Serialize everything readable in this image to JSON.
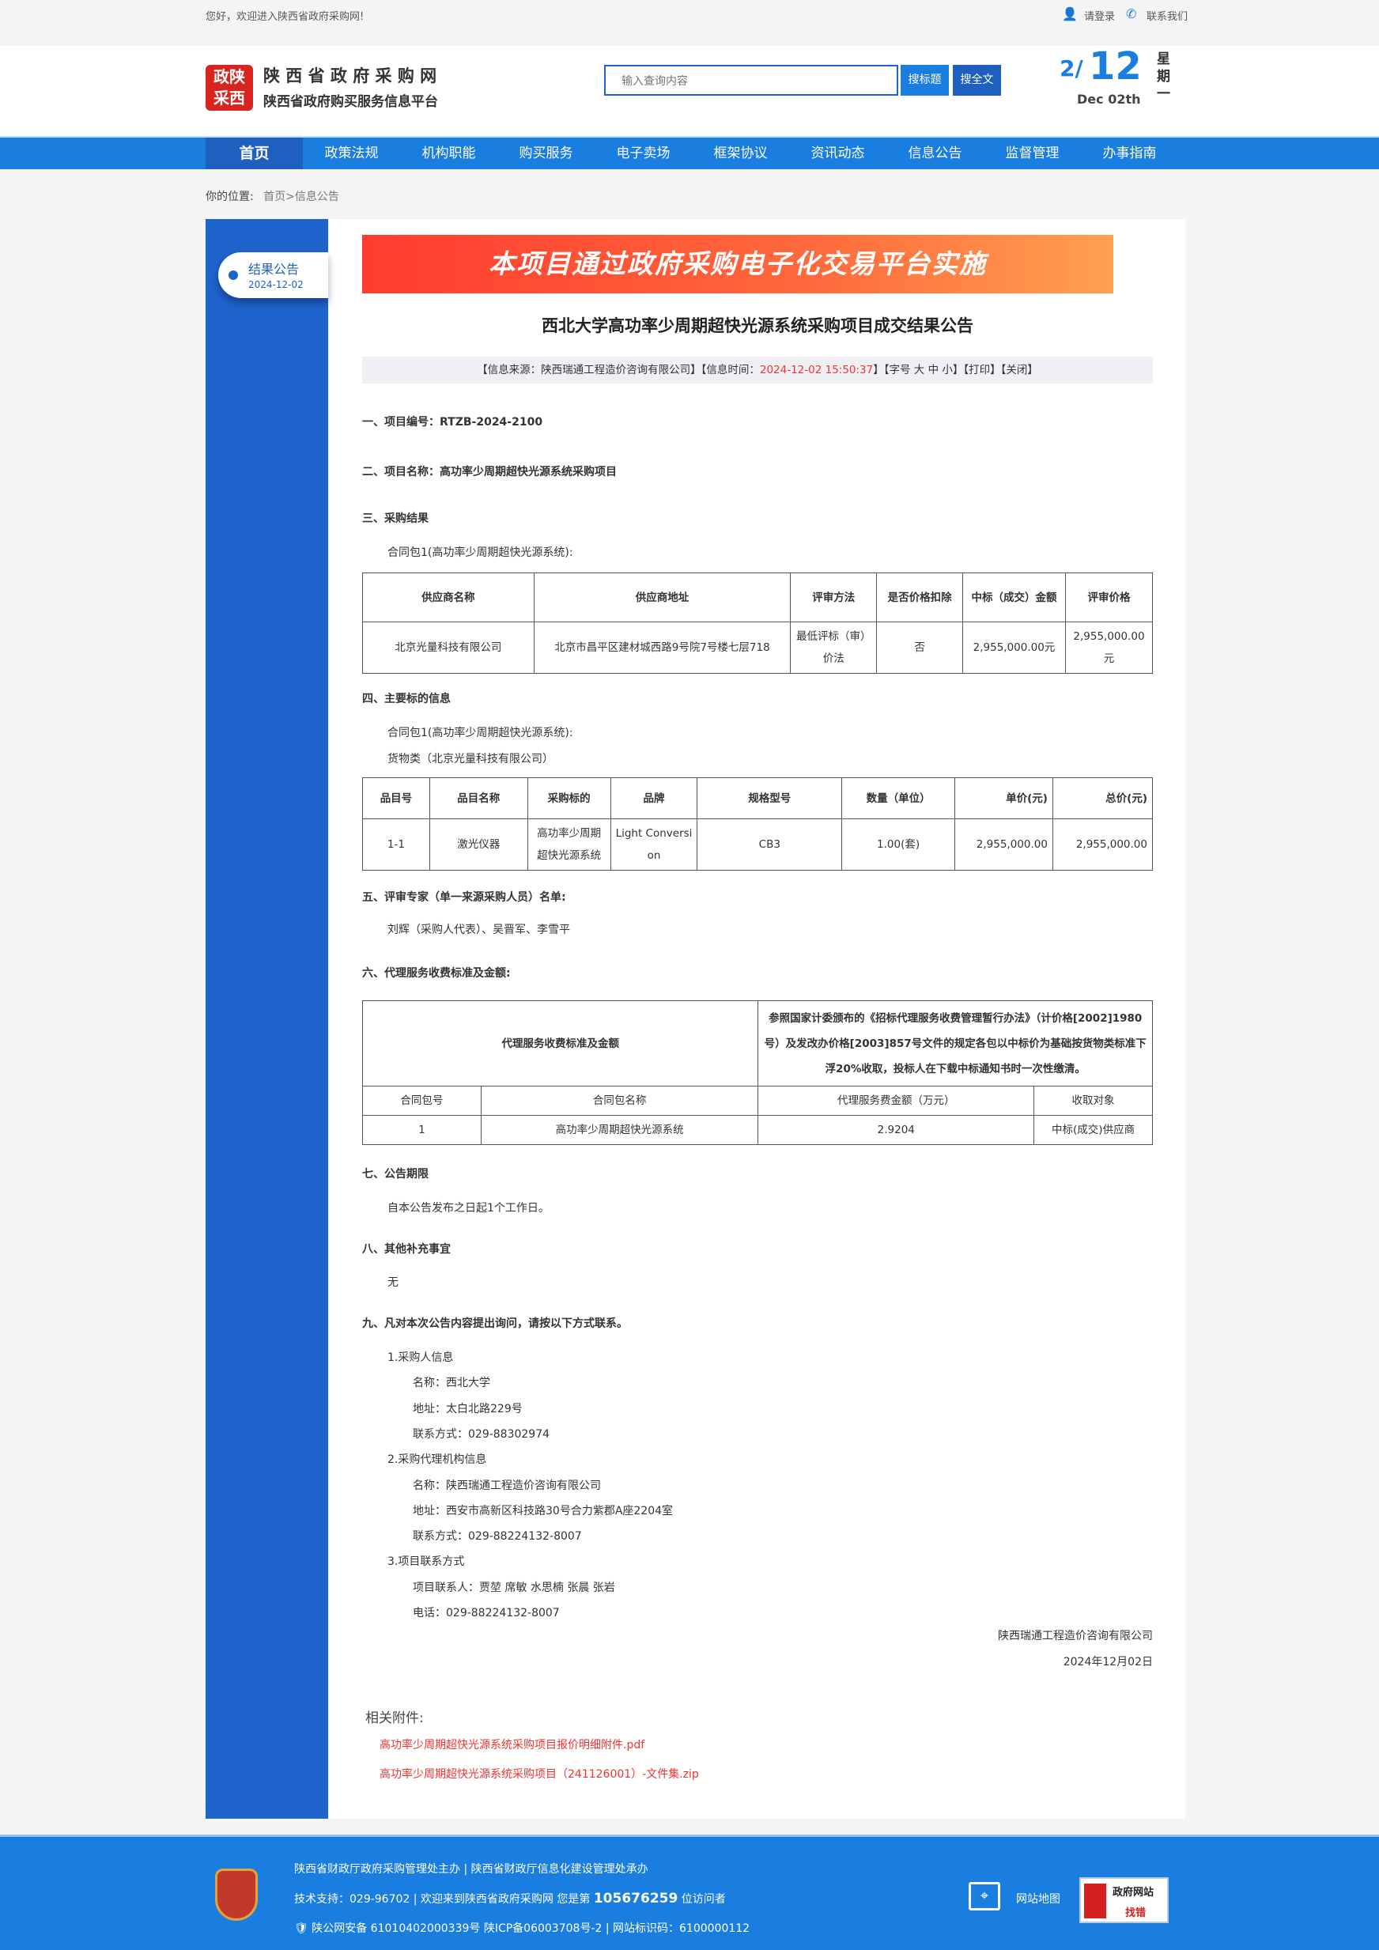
{
  "topbar": {
    "welcome": "您好，欢迎进入陕西省政府采购网!",
    "login": "请登录",
    "contact": "联系我们"
  },
  "header": {
    "logo_text": "陕西政府采购",
    "site_name": "陕 西 省 政 府 采 购 网",
    "site_sub": "陕西省政府购买服务信息平台",
    "search_placeholder": "输入查询内容",
    "search_title_btn": "搜标题",
    "search_full_btn": "搜全文",
    "date_month": "2",
    "date_day": "12",
    "date_en": "Dec 02th",
    "weekday": "星期一"
  },
  "nav": [
    "首页",
    "政策法规",
    "机构职能",
    "购买服务",
    "电子卖场",
    "框架协议",
    "资讯动态",
    "信息公告",
    "监督管理",
    "办事指南"
  ],
  "breadcrumb": {
    "label": "你的位置:",
    "home": "首页",
    "current": ">信息公告"
  },
  "sidebar": {
    "label": "结果公告",
    "date": "2024-12-02"
  },
  "banner": "本项目通过政府采购电子化交易平台实施",
  "article": {
    "title": "西北大学高功率少周期超快光源系统采购项目成交结果公告",
    "info": {
      "source": "【信息来源：陕西瑞通工程造价咨询有限公司】【信息时间：",
      "time": "2024-12-02 15:50:37",
      "rest": "】【字号 大 中 小】【打印】【关闭】"
    },
    "s1": "一、项目编号：RTZB-2024-2100",
    "s2": "二、项目名称：高功率少周期超快光源系统采购项目",
    "s3": "三、采购结果",
    "s3_pkg": "合同包1(高功率少周期超快光源系统):",
    "t1_headers": [
      "供应商名称",
      "供应商地址",
      "评审方法",
      "是否价格扣除",
      "中标（成交）金额",
      "评审价格"
    ],
    "t1_row": [
      "北京光量科技有限公司",
      "北京市昌平区建材城西路9号院7号楼七层718",
      "最低评标（审）价法",
      "否",
      "2,955,000.00元",
      "2,955,000.00元"
    ],
    "s4": "四、主要标的信息",
    "s4_pkg": "合同包1(高功率少周期超快光源系统):",
    "s4_type": "货物类（北京光量科技有限公司）",
    "t2_headers": [
      "品目号",
      "品目名称",
      "采购标的",
      "品牌",
      "规格型号",
      "数量（单位）",
      "单价(元)",
      "总价(元)"
    ],
    "t2_row": [
      "1-1",
      "激光仪器",
      "高功率少周期超快光源系统",
      "Light Conversion",
      "CB3",
      "1.00(套)",
      "2,955,000.00",
      "2,955,000.00"
    ],
    "s5": "五、评审专家（单一来源采购人员）名单:",
    "s5_names": "刘辉（采购人代表）、吴晋军、李雪平",
    "s6": "六、代理服务收费标准及金额:",
    "t3_label": "代理服务收费标准及金额",
    "t3_desc": "参照国家计委颁布的《招标代理服务收费管理暂行办法》（计价格[2002]1980号）及发改办价格[2003]857号文件的规定各包以中标价为基础按货物类标准下浮20%收取，投标人在下载中标通知书时一次性缴清。",
    "t3_headers": [
      "合同包号",
      "合同包名称",
      "代理服务费金额（万元）",
      "收取对象"
    ],
    "t3_row": [
      "1",
      "高功率少周期超快光源系统",
      "2.9204",
      "中标(成交)供应商"
    ],
    "s7": "七、公告期限",
    "s7_text": "自本公告发布之日起1个工作日。",
    "s8": "八、其他补充事宜",
    "s8_text": "无",
    "s9": "九、凡对本次公告内容提出询问，请按以下方式联系。",
    "contacts": [
      {
        "text": "1.采购人信息",
        "indent": 1
      },
      {
        "text": "名称：西北大学",
        "indent": 2
      },
      {
        "text": "地址：太白北路229号",
        "indent": 2
      },
      {
        "text": "联系方式：029-88302974",
        "indent": 2
      },
      {
        "text": "2.采购代理机构信息",
        "indent": 1
      },
      {
        "text": "名称：陕西瑞通工程造价咨询有限公司",
        "indent": 2
      },
      {
        "text": "地址：西安市高新区科技路30号合力紫郡A座2204室",
        "indent": 2
      },
      {
        "text": "联系方式：029-88224132-8007",
        "indent": 2
      },
      {
        "text": "3.项目联系方式",
        "indent": 1
      },
      {
        "text": "项目联系人：贾堃 席敏 水思楠 张晨 张岩",
        "indent": 2
      },
      {
        "text": "电话：029-88224132-8007",
        "indent": 2
      }
    ],
    "sign_org": "陕西瑞通工程造价咨询有限公司",
    "sign_date": "2024年12月02日",
    "attach_label": "相关附件:",
    "attachments": [
      "高功率少周期超快光源系统采购项目报价明细附件.pdf",
      "高功率少周期超快光源系统采购项目（241126001）-文件集.zip"
    ]
  },
  "footer": {
    "line1": "陕西省财政厅政府采购管理处主办 | 陕西省财政厅信息化建设管理处承办",
    "line2_a": "技术支持：029-96702 | 欢迎来到陕西省政府采购网 您是第",
    "visits": "105676259",
    "line2_b": "位访问者",
    "line3": "陕公网安备 61010402000339号   陕ICP备06003708号-2  |  网站标识码：6100000112",
    "sitemap": "网站地图",
    "badge_top": "政府网站",
    "badge_bottom": "找错",
    "party_logo": "党政机关"
  },
  "colors": {
    "nav_blue": "#1a7ee0",
    "active_blue": "#1f5fbf",
    "sidebar_blue": "#1f63cc",
    "accent_red": "#e33"
  }
}
